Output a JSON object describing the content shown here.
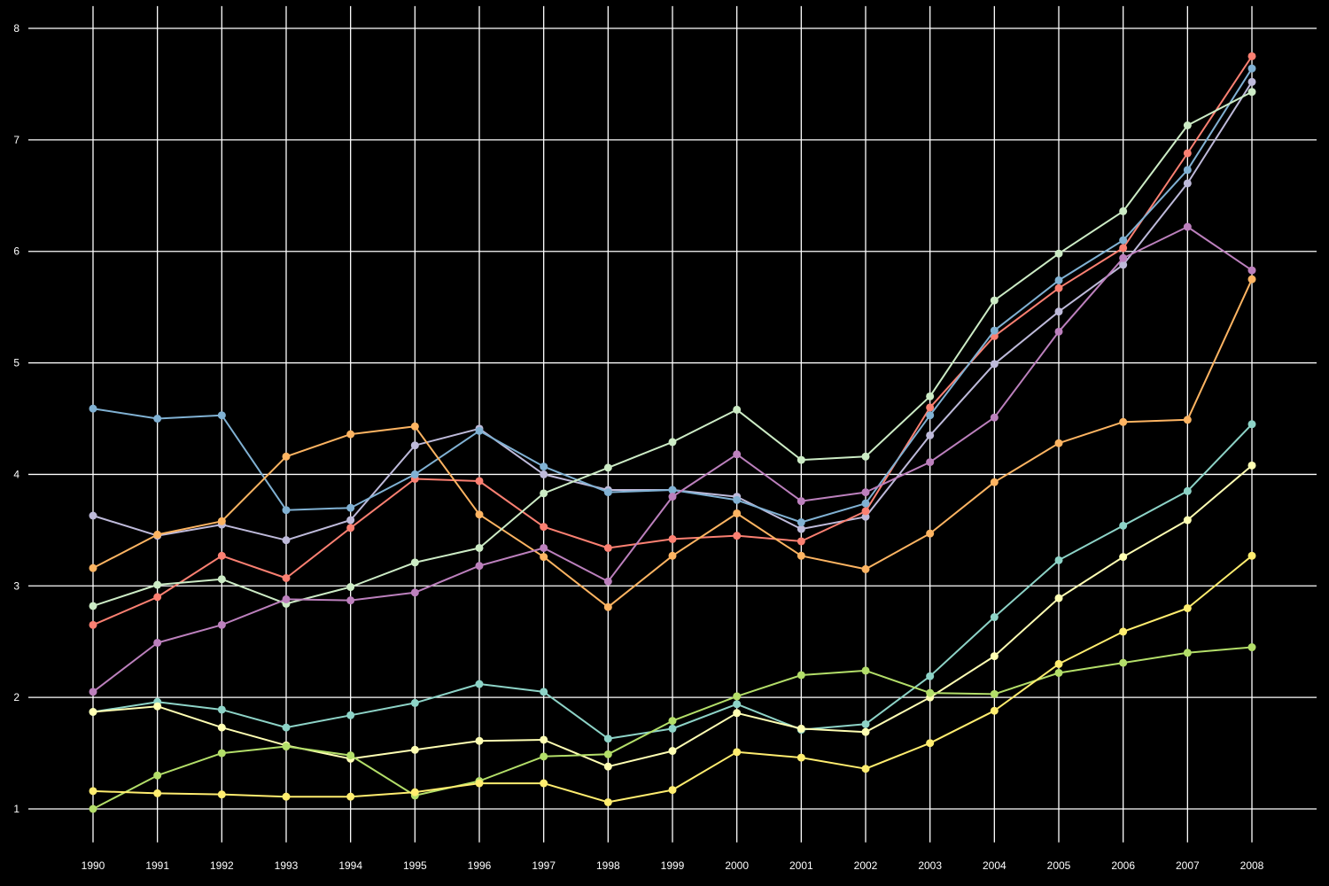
{
  "chart_data": {
    "type": "line",
    "title": "",
    "xlabel": "",
    "ylabel": "",
    "x": [
      1990,
      1991,
      1992,
      1993,
      1994,
      1995,
      1996,
      1997,
      1998,
      1999,
      2000,
      2001,
      2002,
      2003,
      2004,
      2005,
      2006,
      2007,
      2008
    ],
    "x_tick_labels": [
      "1990",
      "1991",
      "1992",
      "1993",
      "1994",
      "1995",
      "1996",
      "1997",
      "1998",
      "1999",
      "2000",
      "2001",
      "2002",
      "2003",
      "2004",
      "2005",
      "2006",
      "2007",
      "2008"
    ],
    "y_ticks": [
      1,
      2,
      3,
      4,
      5,
      6,
      7,
      8
    ],
    "y_tick_labels": [
      "1",
      "2",
      "3",
      "4",
      "5",
      "6",
      "7",
      "8"
    ],
    "ylim": [
      0.7,
      8.2
    ],
    "grid": true,
    "background": "#000000",
    "legend": "none",
    "series": [
      {
        "color": "#8dd3c7",
        "values": [
          1.87,
          1.96,
          1.89,
          1.73,
          1.84,
          1.95,
          2.12,
          2.05,
          1.63,
          1.72,
          1.94,
          1.71,
          1.76,
          2.19,
          2.72,
          3.23,
          3.54,
          3.85,
          4.45
        ]
      },
      {
        "color": "#ffffb3",
        "values": [
          1.87,
          1.92,
          1.73,
          1.57,
          1.45,
          1.53,
          1.61,
          1.62,
          1.38,
          1.52,
          1.86,
          1.72,
          1.69,
          2.0,
          2.37,
          2.89,
          3.26,
          3.59,
          4.08
        ]
      },
      {
        "color": "#bebada",
        "values": [
          3.63,
          3.45,
          3.55,
          3.41,
          3.59,
          4.26,
          4.41,
          4.0,
          3.86,
          3.86,
          3.8,
          3.51,
          3.62,
          4.35,
          4.99,
          5.46,
          5.88,
          6.61,
          7.52
        ]
      },
      {
        "color": "#fb8072",
        "values": [
          2.65,
          2.9,
          3.27,
          3.07,
          3.52,
          3.96,
          3.94,
          3.53,
          3.34,
          3.42,
          3.45,
          3.4,
          3.67,
          4.6,
          5.24,
          5.67,
          6.03,
          6.88,
          7.75
        ]
      },
      {
        "color": "#80b1d3",
        "values": [
          4.59,
          4.5,
          4.53,
          3.68,
          3.7,
          4.0,
          4.39,
          4.07,
          3.84,
          3.86,
          3.77,
          3.57,
          3.74,
          4.53,
          5.29,
          5.74,
          6.1,
          6.73,
          7.64
        ]
      },
      {
        "color": "#fdb462",
        "values": [
          3.16,
          3.46,
          3.58,
          4.16,
          4.36,
          4.43,
          3.64,
          3.26,
          2.81,
          3.27,
          3.65,
          3.27,
          3.15,
          3.47,
          3.93,
          4.28,
          4.47,
          4.49,
          5.75
        ]
      },
      {
        "color": "#b3de69",
        "values": [
          1.0,
          1.3,
          1.5,
          1.56,
          1.48,
          1.12,
          1.25,
          1.47,
          1.49,
          1.79,
          2.01,
          2.2,
          2.24,
          2.04,
          2.03,
          2.22,
          2.31,
          2.4,
          2.45
        ]
      },
      {
        "color": "#ccebc5",
        "values": [
          2.82,
          3.01,
          3.06,
          2.84,
          2.99,
          3.21,
          3.34,
          3.83,
          4.06,
          4.29,
          4.58,
          4.13,
          4.16,
          4.7,
          5.56,
          5.98,
          6.36,
          7.13,
          7.43
        ]
      },
      {
        "color": "#bc80bd",
        "values": [
          2.05,
          2.49,
          2.65,
          2.88,
          2.87,
          2.94,
          3.18,
          3.34,
          3.04,
          3.8,
          4.18,
          3.76,
          3.84,
          4.11,
          4.51,
          5.28,
          5.94,
          6.22,
          5.83
        ]
      },
      {
        "color": "#ffed6f",
        "values": [
          1.16,
          1.14,
          1.13,
          1.11,
          1.11,
          1.15,
          1.23,
          1.23,
          1.06,
          1.17,
          1.51,
          1.46,
          1.36,
          1.59,
          1.88,
          2.3,
          2.59,
          2.8,
          3.27
        ]
      }
    ]
  }
}
